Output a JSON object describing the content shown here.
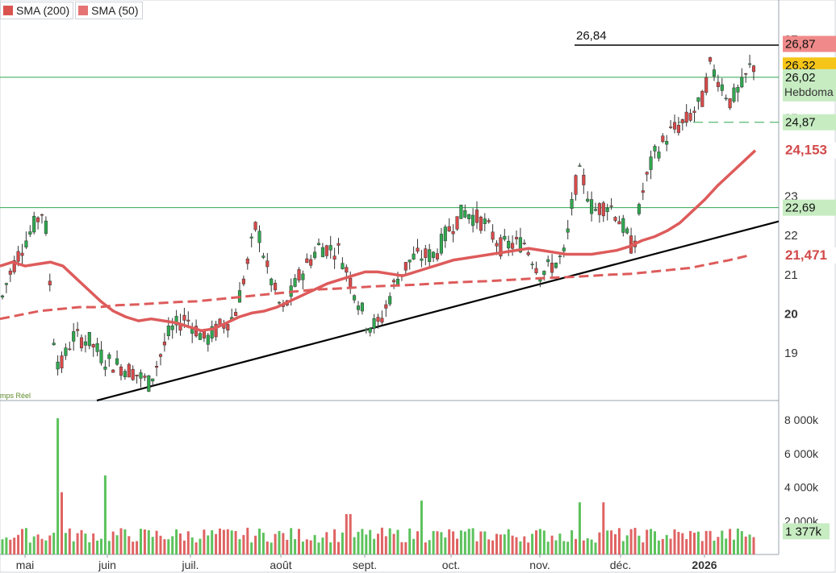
{
  "legend": [
    {
      "label": "SMA (200)",
      "color": "#d9534f"
    },
    {
      "label": "SMA (50)",
      "color": "#e57373"
    }
  ],
  "signature": "mps Réel",
  "colors": {
    "up": "#2fa84f",
    "down": "#d94a4a",
    "sma50": "#de5b5b",
    "sma200": "#de5b5b",
    "trend": "#000000",
    "support": "#2fa84f",
    "resistance": "#000000"
  },
  "chart_data": [
    {
      "type": "candlestick",
      "y_ticks": [
        "27",
        "26",
        "25",
        "23",
        "22",
        "21",
        "20",
        "19"
      ],
      "y_range": [
        18.0,
        27.6
      ],
      "x_ticks": [
        "mai",
        "juin",
        "juil.",
        "août",
        "sept.",
        "oct.",
        "nov.",
        "déc.",
        "2026"
      ],
      "horizontal_lines": [
        {
          "value": 26.84,
          "label": "26,84",
          "style": "resistance"
        },
        {
          "value": 26.02,
          "style": "support"
        },
        {
          "value": 22.69,
          "style": "support"
        },
        {
          "value": 24.87,
          "style": "dashed"
        }
      ],
      "price_labels": [
        {
          "text": "26,87",
          "bg": "#f08a8a"
        },
        {
          "text": "26,32",
          "bg": "#f5c518"
        },
        {
          "text": "26,02",
          "bg": "#c7ecc2",
          "sub": "Hebdoma"
        },
        {
          "text": "24,87",
          "bg": "#c7ecc2"
        },
        {
          "text": "24,153",
          "bg": "#ffffff",
          "fg": "#d24a4a"
        },
        {
          "text": "22,69",
          "bg": "#c7ecc2"
        },
        {
          "text": "21,471",
          "bg": "#ffffff",
          "fg": "#d24a4a"
        }
      ],
      "trendline": {
        "from": [
          "mai",
          17.9
        ],
        "to": [
          "2026",
          22.3
        ]
      },
      "sma50": [
        21.2,
        21.3,
        21.2,
        21.25,
        21.3,
        21.2,
        20.9,
        20.6,
        20.3,
        20.05,
        19.9,
        19.8,
        19.85,
        19.8,
        19.75,
        19.65,
        19.55,
        19.6,
        19.75,
        19.9,
        20.0,
        20.05,
        20.15,
        20.3,
        20.45,
        20.6,
        20.75,
        20.85,
        20.95,
        21.05,
        21.05,
        21.0,
        20.95,
        21.05,
        21.15,
        21.25,
        21.35,
        21.4,
        21.45,
        21.5,
        21.55,
        21.6,
        21.65,
        21.6,
        21.55,
        21.5,
        21.5,
        21.5,
        21.55,
        21.6,
        21.7,
        21.85,
        21.95,
        22.1,
        22.3,
        22.6,
        22.9,
        23.25,
        23.55,
        23.85,
        24.15
      ],
      "sma200": [
        19.85,
        19.95,
        20.05,
        20.1,
        20.15,
        20.15,
        20.2,
        20.22,
        20.25,
        20.28,
        20.3,
        20.35,
        20.4,
        20.45,
        20.5,
        20.55,
        20.6,
        20.62,
        20.65,
        20.68,
        20.7,
        20.72,
        20.75,
        20.78,
        20.8,
        20.82,
        20.85,
        20.88,
        20.9,
        20.92,
        20.95,
        20.98,
        21.0,
        21.05,
        21.1,
        21.15,
        21.25,
        21.35,
        21.47
      ],
      "candles_ohlc_approx": "derived from daily price series May 2025 – Jan 2026",
      "volume_axis": [
        "8 000k",
        "6 000k",
        "4 000k",
        "2 000k"
      ],
      "volume_last": "1 377k",
      "volume_range": [
        0,
        9000
      ]
    }
  ]
}
